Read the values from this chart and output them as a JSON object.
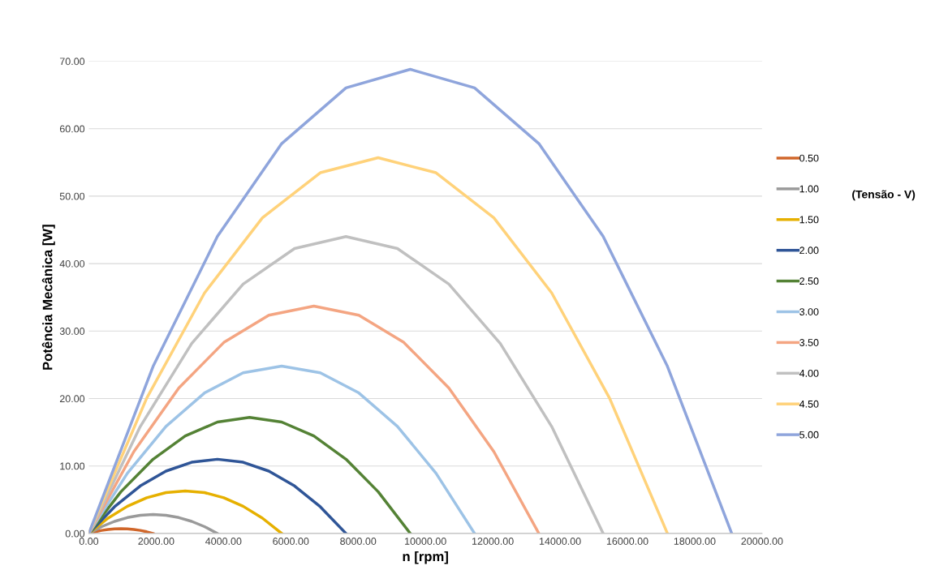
{
  "chart_data": {
    "type": "line",
    "xlabel": "n [rpm]",
    "ylabel": "Potência Mecânica [W]",
    "legend_title": "(Tensão - V)",
    "legend": "right",
    "grid": "y",
    "marker": "none",
    "line_style": "solid",
    "xlim": [
      0,
      20000
    ],
    "xticks": [
      {
        "value": 0,
        "label": "0.00"
      },
      {
        "value": 2000,
        "label": "2000.00"
      },
      {
        "value": 4000,
        "label": "4000.00"
      },
      {
        "value": 6000,
        "label": "6000.00"
      },
      {
        "value": 8000,
        "label": "8000.00"
      },
      {
        "value": 10000,
        "label": "10000.00"
      },
      {
        "value": 12000,
        "label": "12000.00"
      },
      {
        "value": 14000,
        "label": "14000.00"
      },
      {
        "value": 16000,
        "label": "16000.00"
      },
      {
        "value": 18000,
        "label": "18000.00"
      },
      {
        "value": 20000,
        "label": "20000.00"
      }
    ],
    "ylim": [
      0,
      70
    ],
    "yticks": [
      {
        "value": 0,
        "label": "0.00"
      },
      {
        "value": 10,
        "label": "10.00"
      },
      {
        "value": 20,
        "label": "20.00"
      },
      {
        "value": 30,
        "label": "30.00"
      },
      {
        "value": 40,
        "label": "40.00"
      },
      {
        "value": 50,
        "label": "50.00"
      },
      {
        "value": 60,
        "label": "60.00"
      },
      {
        "value": 70,
        "label": "70.00"
      }
    ],
    "series": [
      {
        "name": "0.50",
        "color": "#d0662a",
        "x": [
          0,
          191,
          382,
          573,
          764,
          955,
          1146,
          1337,
          1528,
          1719,
          1910
        ],
        "values": [
          0,
          0.25,
          0.45,
          0.59,
          0.67,
          0.7,
          0.67,
          0.59,
          0.45,
          0.25,
          0
        ]
      },
      {
        "name": "1.00",
        "color": "#9a9a9a",
        "x": [
          0,
          382,
          764,
          1146,
          1528,
          1910,
          2292,
          2674,
          3056,
          3438,
          3820
        ],
        "values": [
          0,
          1.01,
          1.79,
          2.35,
          2.69,
          2.8,
          2.69,
          2.35,
          1.79,
          1.01,
          0
        ]
      },
      {
        "name": "1.50",
        "color": "#e6b000",
        "x": [
          0,
          573,
          1146,
          1719,
          2292,
          2865,
          3438,
          4011,
          4584,
          5157,
          5730
        ],
        "values": [
          0,
          2.27,
          4.03,
          5.29,
          6.05,
          6.3,
          6.05,
          5.29,
          4.03,
          2.27,
          0
        ]
      },
      {
        "name": "2.00",
        "color": "#2f5597",
        "x": [
          0,
          764,
          1528,
          2292,
          3056,
          3820,
          4584,
          5348,
          6112,
          6876,
          7640
        ],
        "values": [
          0,
          3.96,
          7.04,
          9.24,
          10.56,
          11.0,
          10.56,
          9.24,
          7.04,
          3.96,
          0
        ]
      },
      {
        "name": "2.50",
        "color": "#548235",
        "x": [
          0,
          955,
          1910,
          2865,
          3820,
          4775,
          5730,
          6685,
          7640,
          8595,
          9550
        ],
        "values": [
          0,
          6.19,
          11.01,
          14.45,
          16.51,
          17.2,
          16.51,
          14.45,
          11.01,
          6.19,
          0
        ]
      },
      {
        "name": "3.00",
        "color": "#9dc3e6",
        "x": [
          0,
          1146,
          2292,
          3438,
          4584,
          5730,
          6876,
          8022,
          9168,
          10314,
          11460
        ],
        "values": [
          0,
          8.93,
          15.87,
          20.83,
          23.81,
          24.8,
          23.81,
          20.83,
          15.87,
          8.93,
          0
        ]
      },
      {
        "name": "3.50",
        "color": "#f4a582",
        "x": [
          0,
          1337,
          2674,
          4011,
          5348,
          6685,
          8022,
          9359,
          10696,
          12033,
          13370
        ],
        "values": [
          0,
          12.13,
          21.57,
          28.31,
          32.35,
          33.7,
          32.35,
          28.31,
          21.57,
          12.13,
          0
        ]
      },
      {
        "name": "4.00",
        "color": "#c0c0c0",
        "x": [
          0,
          1528,
          3056,
          4584,
          6112,
          7640,
          9168,
          10696,
          12224,
          13752,
          15280
        ],
        "values": [
          0,
          15.84,
          28.16,
          36.96,
          42.24,
          44.0,
          42.24,
          36.96,
          28.16,
          15.84,
          0
        ]
      },
      {
        "name": "4.50",
        "color": "#ffd27a",
        "x": [
          0,
          1719,
          3438,
          5157,
          6876,
          8595,
          10314,
          12033,
          13752,
          15471,
          17190
        ],
        "values": [
          0,
          20.05,
          35.65,
          46.79,
          53.47,
          55.7,
          53.47,
          46.79,
          35.65,
          20.05,
          0
        ]
      },
      {
        "name": "5.00",
        "color": "#8fa5dc",
        "x": [
          0,
          1910,
          3820,
          5730,
          7640,
          9550,
          11460,
          13370,
          15280,
          17190,
          19100
        ],
        "values": [
          0,
          24.77,
          44.03,
          57.79,
          66.05,
          68.8,
          66.05,
          57.79,
          44.03,
          24.77,
          0
        ]
      }
    ]
  }
}
